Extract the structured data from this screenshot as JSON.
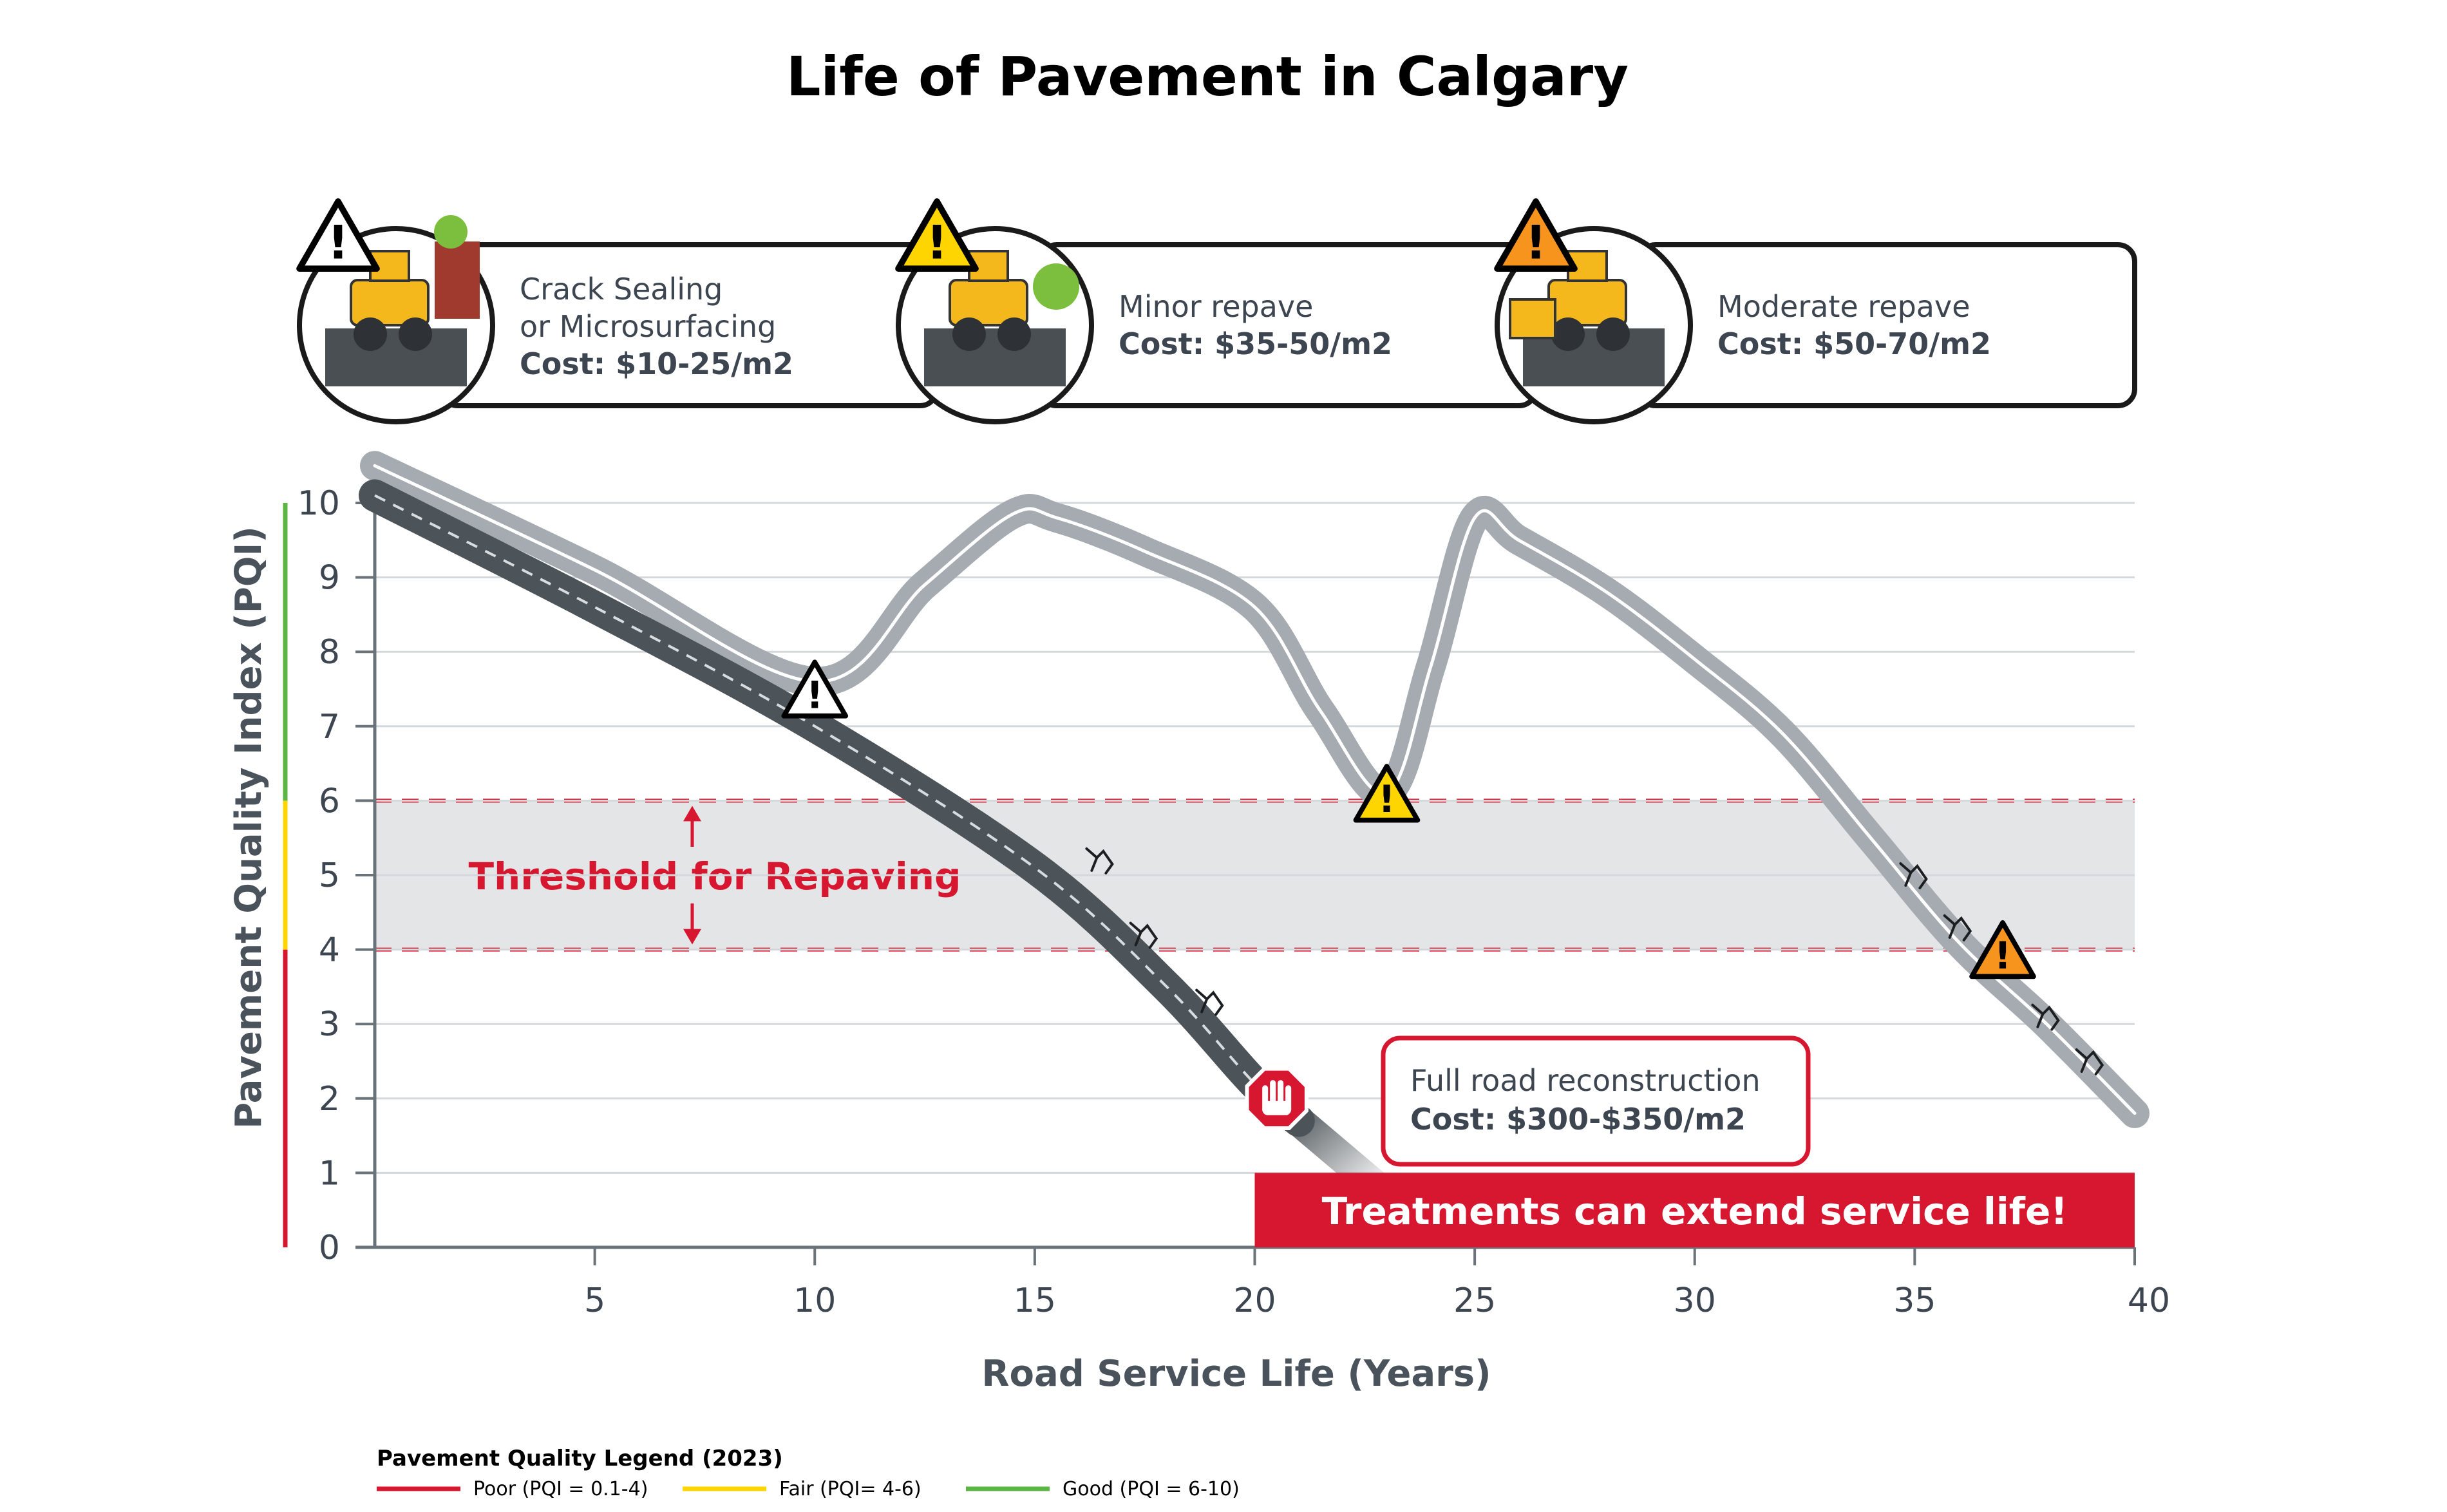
{
  "chart_data": {
    "type": "line",
    "title": "Life of Pavement in Calgary",
    "xlabel": "Road Service Life (Years)",
    "ylabel": "Pavement Quality Index (PQI)",
    "xlim": [
      0,
      40
    ],
    "ylim": [
      0,
      10
    ],
    "x_ticks": [
      5,
      10,
      15,
      20,
      25,
      30,
      35,
      40
    ],
    "y_ticks": [
      0,
      1,
      2,
      3,
      4,
      5,
      6,
      7,
      8,
      9,
      10
    ],
    "grid": true,
    "series": [
      {
        "color": "#4d5459",
        "x": [
          0,
          5,
          10,
          15,
          18,
          20,
          21
        ],
        "y": [
          10.1,
          8.6,
          7.0,
          5.1,
          3.5,
          2.2,
          1.7
        ]
      },
      {
        "color": "#a5abb1",
        "x": [
          0,
          5,
          10,
          12.5,
          14.5,
          15.5,
          17.5,
          20,
          21.5,
          23,
          24,
          25,
          26,
          28,
          30,
          32,
          34,
          36,
          38,
          40
        ],
        "y": [
          10.5,
          9.1,
          7.6,
          8.9,
          9.85,
          9.8,
          9.35,
          8.6,
          7.2,
          6.1,
          7.8,
          9.8,
          9.5,
          8.8,
          7.9,
          6.9,
          5.5,
          4.1,
          3.0,
          1.8
        ]
      }
    ],
    "threshold_band": {
      "ymin": 4,
      "ymax": 6,
      "label": "Threshold for Repaving",
      "color": "#d7162f"
    },
    "markers": [
      {
        "x": 10,
        "y": 7.5,
        "symbol": "!",
        "color": "#ffffff"
      },
      {
        "x": 23,
        "y": 6.1,
        "symbol": "!",
        "color": "#ffd500"
      },
      {
        "x": 37,
        "y": 4.0,
        "symbol": "!",
        "color": "#f7941d"
      },
      {
        "x": 20.5,
        "y": 2.0,
        "symbol": "stop-hand",
        "color": "#d7162f"
      }
    ],
    "banner": {
      "x_start": 20,
      "x_end": 40,
      "y_start": 0,
      "y_end": 1,
      "label": "Treatments can extend service life!",
      "color": "#d7162f"
    },
    "reconstruction": {
      "line1": "Full road reconstruction",
      "cost": "Cost: $300-$350/m2"
    },
    "treatments": [
      {
        "lines": [
          "Crack Sealing",
          "or Microsurfacing"
        ],
        "cost": "Cost: $10-25/m2",
        "warning_color": "#ffffff",
        "icon": "crack-sealing-icon"
      },
      {
        "lines": [
          "Minor repave"
        ],
        "cost": "Cost: $35-50/m2",
        "warning_color": "#ffd500",
        "icon": "road-roller-icon"
      },
      {
        "lines": [
          "Moderate repave"
        ],
        "cost": "Cost: $50-70/m2",
        "warning_color": "#f7941d",
        "icon": "paver-icon"
      }
    ],
    "legend": {
      "title": "Pavement Quality Legend (2023)",
      "items": [
        {
          "label": "Poor (PQI = 0.1-4)",
          "color": "#d7162f",
          "min": 0,
          "max": 4
        },
        {
          "label": "Fair (PQI= 4-6)",
          "color": "#ffd500",
          "min": 4,
          "max": 6
        },
        {
          "label": "Good (PQI = 6-10)",
          "color": "#5cb643",
          "min": 6,
          "max": 10
        }
      ]
    }
  }
}
